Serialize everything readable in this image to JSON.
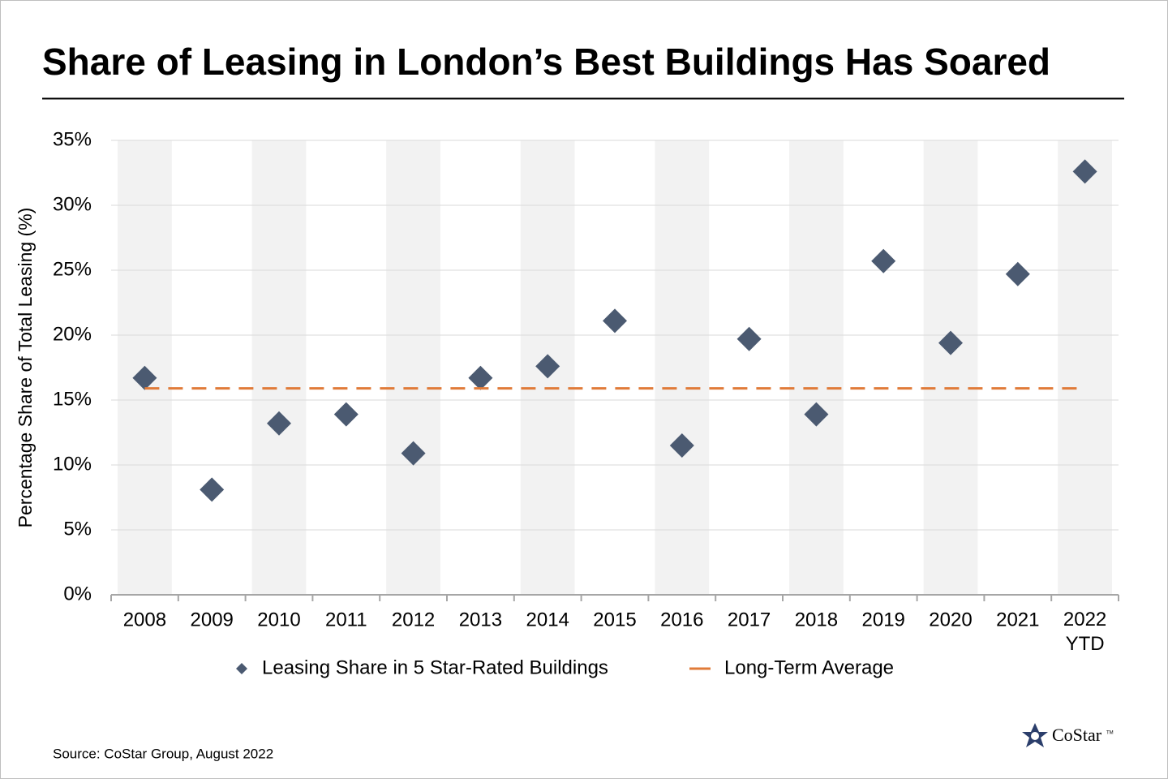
{
  "chart_data": {
    "type": "scatter",
    "title": "Share of Leasing in London’s Best Buildings Has Soared",
    "ylabel": "Percentage Share of Total Leasing (%)",
    "categories": [
      "2008",
      "2009",
      "2010",
      "2011",
      "2012",
      "2013",
      "2014",
      "2015",
      "2016",
      "2017",
      "2018",
      "2019",
      "2020",
      "2021",
      "2022 YTD"
    ],
    "series": [
      {
        "name": "Leasing Share in 5 Star-Rated Buildings",
        "color": "#4b5a71",
        "marker": "diamond",
        "values": [
          16.7,
          8.1,
          13.2,
          13.9,
          10.9,
          16.7,
          17.6,
          21.1,
          11.5,
          19.7,
          13.9,
          25.7,
          19.4,
          24.7,
          32.6
        ]
      },
      {
        "name": "Long-Term Average",
        "color": "#e07b39",
        "style": "dashed",
        "value": 15.9
      }
    ],
    "ylim": [
      0,
      35
    ],
    "yticks": [
      {
        "value": 0,
        "label": "0%"
      },
      {
        "value": 5,
        "label": "5%"
      },
      {
        "value": 10,
        "label": "10%"
      },
      {
        "value": 15,
        "label": "15%"
      },
      {
        "value": 20,
        "label": "20%"
      },
      {
        "value": 25,
        "label": "25%"
      },
      {
        "value": 30,
        "label": "30%"
      },
      {
        "value": 35,
        "label": "35%"
      }
    ],
    "grid": true,
    "band_color": "#f2f2f2",
    "legend": "bottom",
    "source": "Source: CoStar Group, August 2022",
    "logo": "CoStar",
    "logo_mark": "TM"
  }
}
